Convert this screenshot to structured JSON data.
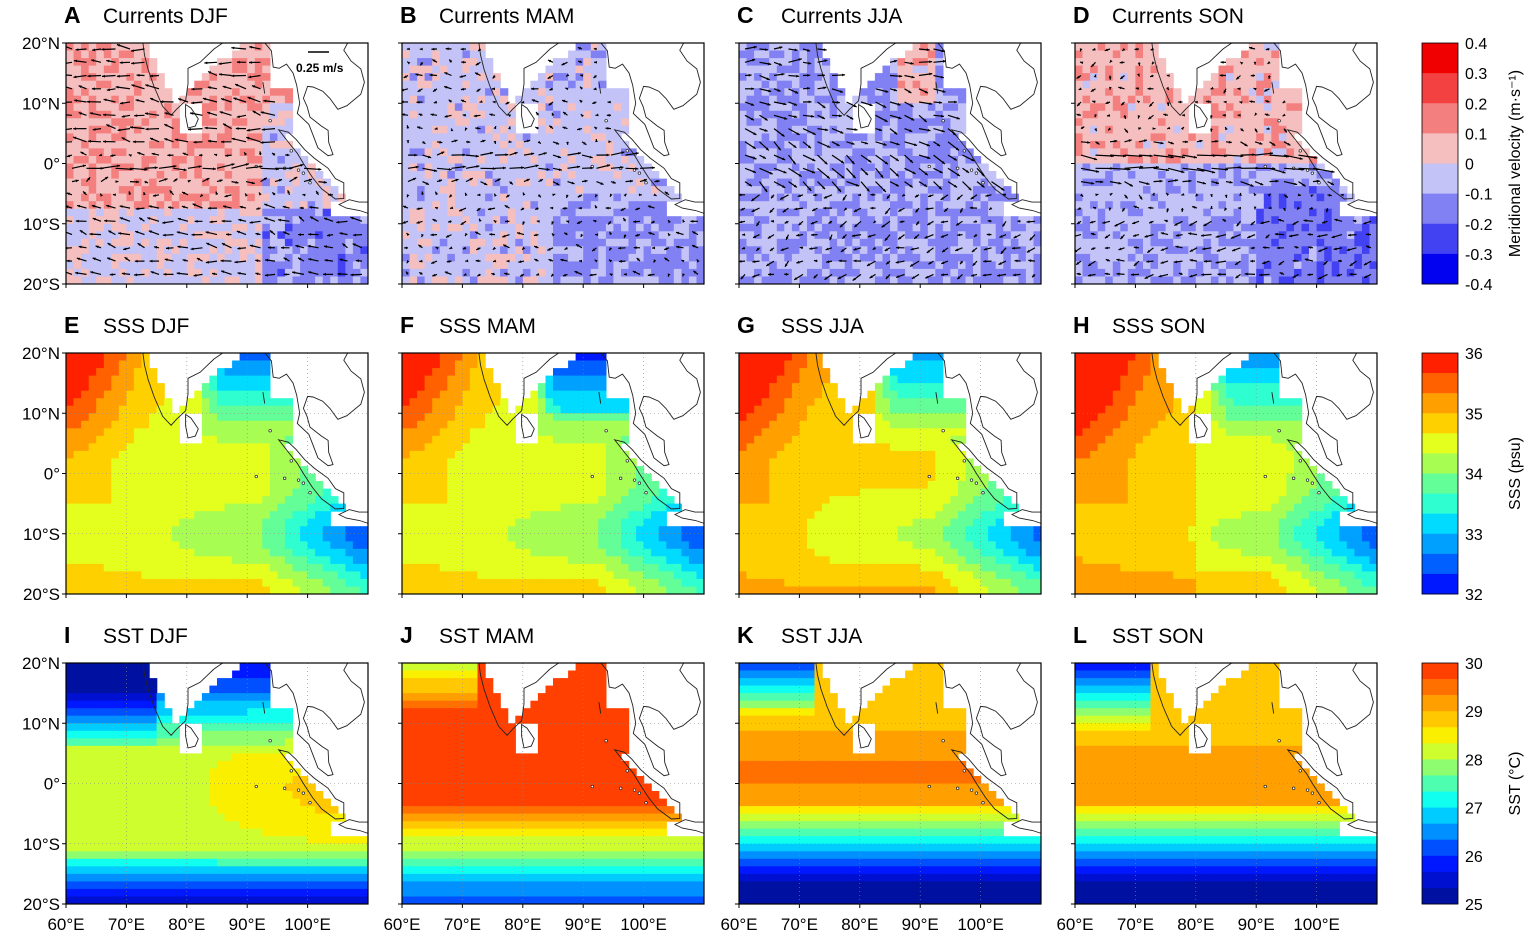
{
  "panels": [
    {
      "letter": "A",
      "title": "Currents DJF",
      "kind": "currents",
      "season": "DJF"
    },
    {
      "letter": "B",
      "title": "Currents MAM",
      "kind": "currents",
      "season": "MAM"
    },
    {
      "letter": "C",
      "title": "Currents JJA",
      "kind": "currents",
      "season": "JJA"
    },
    {
      "letter": "D",
      "title": "Currents SON",
      "kind": "currents",
      "season": "SON"
    },
    {
      "letter": "E",
      "title": "SSS DJF",
      "kind": "sss",
      "season": "DJF"
    },
    {
      "letter": "F",
      "title": "SSS MAM",
      "kind": "sss",
      "season": "MAM"
    },
    {
      "letter": "G",
      "title": "SSS JJA",
      "kind": "sss",
      "season": "JJA"
    },
    {
      "letter": "H",
      "title": "SSS SON",
      "kind": "sss",
      "season": "SON"
    },
    {
      "letter": "I",
      "title": "SST DJF",
      "kind": "sst",
      "season": "DJF"
    },
    {
      "letter": "J",
      "title": "SST MAM",
      "kind": "sst",
      "season": "MAM"
    },
    {
      "letter": "K",
      "title": "SST JJA",
      "kind": "sst",
      "season": "JJA"
    },
    {
      "letter": "L",
      "title": "SST SON",
      "kind": "sst",
      "season": "SON"
    }
  ],
  "lat_ticks": [
    "20°N",
    "10°N",
    "0°",
    "10°S",
    "20°S"
  ],
  "lon_ticks": [
    "60°E",
    "70°E",
    "80°E",
    "90°E",
    "100°E"
  ],
  "scale_arrow_label": "0.25 m/s",
  "colorbars": [
    {
      "id": "velocity",
      "label": "Meridional velocity (m·s⁻¹)",
      "ticks": [
        "0.4",
        "0.3",
        "0.2",
        "0.1",
        "0",
        "-0.1",
        "-0.2",
        "-0.3",
        "-0.4"
      ],
      "colors": [
        "#f00000",
        "#f34040",
        "#f47f7f",
        "#f6bfbf",
        "#c3c3f7",
        "#8181f3",
        "#4242f3",
        "#0202f0"
      ]
    },
    {
      "id": "sss",
      "label": "SSS (psu)",
      "ticks": [
        "36",
        "35",
        "34",
        "33",
        "32"
      ],
      "colors": [
        "#ff2000",
        "#ff6000",
        "#ff9f00",
        "#ffd000",
        "#e4fe1e",
        "#a8fd53",
        "#63fe97",
        "#2efed0",
        "#00dbff",
        "#00a0ff",
        "#0060ff",
        "#0018ff"
      ]
    },
    {
      "id": "sst",
      "label": "SST (°C)",
      "ticks": [
        "30",
        "29",
        "28",
        "27",
        "26",
        "25"
      ],
      "colors": [
        "#ff4000",
        "#ff7000",
        "#ffa000",
        "#ffc800",
        "#fbef00",
        "#cffe2f",
        "#8efe70",
        "#4dfeb1",
        "#10ffee",
        "#00ccff",
        "#0090ff",
        "#0050ff",
        "#0018ff",
        "#0010d0",
        "#0010a0"
      ]
    }
  ],
  "chart_data": {
    "type": "heatmap",
    "map_extent": {
      "lon": [
        60,
        110
      ],
      "lat": [
        -20,
        20
      ]
    },
    "rows": [
      "Currents (meridional velocity, m/s)",
      "SSS (psu)",
      "SST (°C)"
    ],
    "columns": [
      "DJF",
      "MAM",
      "JJA",
      "SON"
    ],
    "velocity_range": [
      -0.4,
      0.4
    ],
    "sss_range": [
      32,
      36
    ],
    "sst_range": [
      25,
      30
    ]
  }
}
